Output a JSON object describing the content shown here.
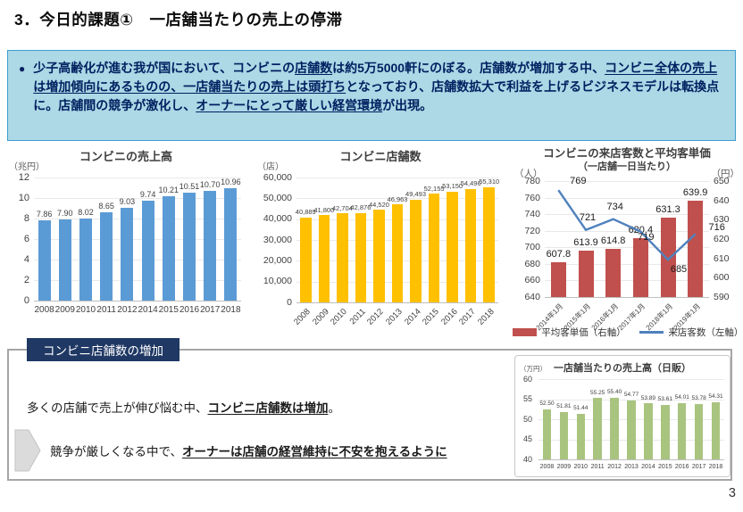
{
  "page": {
    "title": "3．今日的課題①　一店舗当たりの売上の停滞",
    "page_number": "3"
  },
  "lead": {
    "bullet": "●",
    "segments": [
      {
        "text": "少子高齢化が進む我が国において、コンビニの",
        "em": false
      },
      {
        "text": "店舗数",
        "em": true
      },
      {
        "text": "は約5万5000軒にのぼる。店舗数が増加する中、",
        "em": false
      },
      {
        "text": "コンビニ全体の売上は増加傾向にあるものの、一店舗当たりの売上は頭打ち",
        "em": true
      },
      {
        "text": "となっており、店舗数拡大で利益を上げるビジネスモデルは転換点に。店舗間の競争が激化し、",
        "em": false
      },
      {
        "text": "オーナーにとって厳しい経営環境",
        "em": true
      },
      {
        "text": "が出現。",
        "em": false
      }
    ]
  },
  "bottom": {
    "label": "コンビニ店舗数の増加",
    "line1": [
      {
        "text": "多くの店舗で売上が伸び悩む中、",
        "em": false
      },
      {
        "text": "コンビニ店舗数は増加",
        "em": true
      },
      {
        "text": "。",
        "em": false
      }
    ],
    "line2": [
      {
        "text": "競争が厳しくなる中で、",
        "em": false
      },
      {
        "text": "オーナーは店舗の経営維持に不安を抱えるように",
        "em": true
      }
    ]
  },
  "chart_data": [
    {
      "type": "bar",
      "title": "コンビニの売上高",
      "unit": "（兆円）",
      "categories": [
        "2008",
        "2009",
        "2010",
        "2011",
        "2012",
        "2014",
        "2015",
        "2016",
        "2017",
        "2018"
      ],
      "values": [
        7.86,
        7.9,
        8.02,
        8.65,
        9.03,
        9.74,
        10.21,
        10.51,
        10.7,
        10.96
      ],
      "labels": [
        "7.86",
        "7.90",
        "8.02",
        "8.65",
        "9.03",
        "9.74",
        "10.21",
        "10.51",
        "10.70",
        "10.96"
      ],
      "ylim": [
        0,
        12
      ],
      "yticks": [
        "12",
        "10",
        "8",
        "6",
        "4",
        "2",
        "0"
      ],
      "bar_color": "#5B9BD5",
      "grid": true
    },
    {
      "type": "bar",
      "title": "コンビニ店舗数",
      "unit": "（店）",
      "categories": [
        "2008",
        "2009",
        "2010",
        "2011",
        "2012",
        "2013",
        "2014",
        "2015",
        "2016",
        "2017",
        "2018"
      ],
      "values": [
        40889,
        41800,
        42704,
        42876,
        44520,
        46963,
        49493,
        52155,
        53150,
        54496,
        55310
      ],
      "labels": [
        "40,889",
        "41,800",
        "42,704",
        "42,876",
        "44,520",
        "46,963",
        "49,493",
        "52,155",
        "53,150",
        "54,496",
        "55,310"
      ],
      "ylim": [
        0,
        60000
      ],
      "yticks": [
        "60,000",
        "50,000",
        "40,000",
        "30,000",
        "20,000",
        "10,000",
        "0"
      ],
      "bar_color": "#FFC000",
      "grid": true
    },
    {
      "type": "combo",
      "title": "コンビニの来店客数と平均客単価",
      "subtitle": "（一店舗一日当たり）",
      "left_unit": "（人）",
      "right_unit": "（円）",
      "categories": [
        "2014年1月",
        "2015年1月",
        "2016年1月",
        "2017年1月",
        "2018年1月",
        "2019年1月"
      ],
      "series": [
        {
          "name": "平均客単価（右軸）",
          "type": "bar",
          "axis": "right",
          "values": [
            607.8,
            613.9,
            614.8,
            620.4,
            631.3,
            639.9
          ],
          "labels": [
            "607.8",
            "613.9",
            "614.8",
            "620.4",
            "631.3",
            "639.9"
          ],
          "color": "#C0504D"
        },
        {
          "name": "来店客数（左軸）",
          "type": "line",
          "axis": "left",
          "values": [
            769,
            721,
            734,
            719,
            685,
            716
          ],
          "labels": [
            "769",
            "721",
            "734",
            "719",
            "685",
            "716"
          ],
          "color": "#4F81BD"
        }
      ],
      "left_ylim": [
        640,
        780
      ],
      "left_yticks": [
        "780",
        "760",
        "740",
        "720",
        "700",
        "680",
        "660",
        "640"
      ],
      "right_ylim": [
        590,
        650
      ],
      "right_yticks": [
        "650",
        "640",
        "630",
        "620",
        "610",
        "600",
        "590"
      ],
      "legend_position": "bottom",
      "grid": true
    },
    {
      "type": "bar",
      "title": "一店舗当たりの売上高（日販）",
      "unit": "（万円）",
      "categories": [
        "2008",
        "2009",
        "2010",
        "2011",
        "2012",
        "2013",
        "2014",
        "2015",
        "2016",
        "2017",
        "2018"
      ],
      "values": [
        52.5,
        51.81,
        51.44,
        55.25,
        55.4,
        54.77,
        53.89,
        53.61,
        54.01,
        53.78,
        54.31
      ],
      "labels": [
        "52.50",
        "51.81",
        "51.44",
        "55.25",
        "55.40",
        "54.77",
        "53.89",
        "53.61",
        "54.01",
        "53.78",
        "54.31"
      ],
      "ylim": [
        40,
        60
      ],
      "yticks": [
        "60",
        "55",
        "50",
        "45",
        "40"
      ],
      "bar_color": "#A9C47F",
      "grid": true
    }
  ],
  "colors": {
    "lead_box_bg": "#ADD8E6",
    "lead_text": "#002060",
    "sales_bar": "#5B9BD5",
    "stores_bar": "#FFC000",
    "price_bar": "#C0504D",
    "visitors_line": "#4F81BD",
    "daily_bar": "#A9C47F",
    "section_label_bg": "#1F3864",
    "bottom_border": "#A6A6A6"
  }
}
